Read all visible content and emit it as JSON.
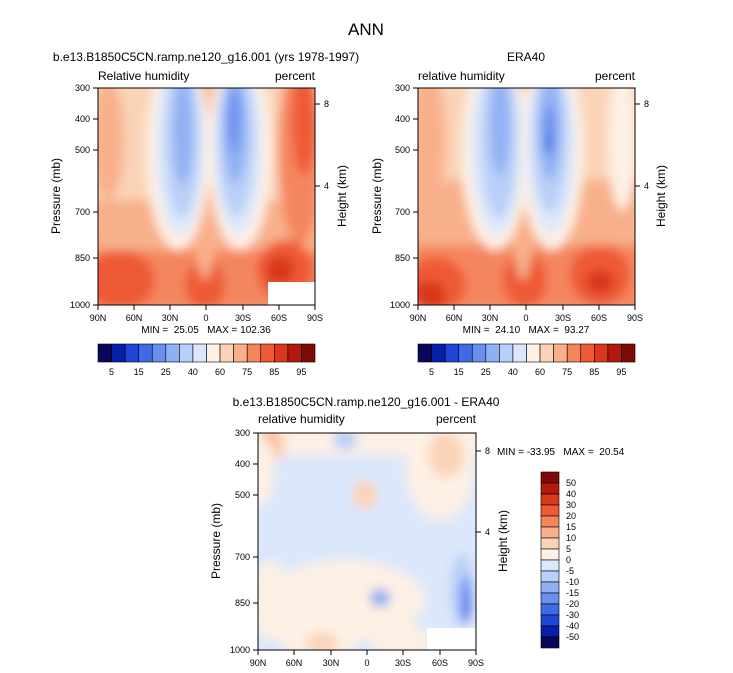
{
  "figure": {
    "title": "ANN"
  },
  "chart_data": [
    {
      "type": "heatmap",
      "title": "b.e13.B1850C5CN.ramp.ne120_g16.001 (yrs 1978-1997)",
      "left_label": "Relative humidity",
      "right_label": "percent",
      "xlabel": "",
      "ylabel": "Pressure (mb)",
      "y2label": "Height (km)",
      "x_ticks": [
        "90N",
        "60N",
        "30N",
        "0",
        "30S",
        "60S",
        "90S"
      ],
      "y_ticks": [
        "300",
        "400",
        "500",
        "700",
        "850",
        "1000"
      ],
      "y2_ticks": [
        "8",
        "4"
      ],
      "xlim": [
        90,
        -90
      ],
      "ylim": [
        1000,
        300
      ],
      "stats_text": "MIN =  25.05   MAX = 102.36",
      "min": 25.05,
      "max": 102.36
    },
    {
      "type": "heatmap",
      "title": "ERA40",
      "left_label": "relative humidity",
      "right_label": "percent",
      "xlabel": "",
      "ylabel": "Pressure (mb)",
      "y2label": "Height (km)",
      "x_ticks": [
        "90N",
        "60N",
        "30N",
        "0",
        "30S",
        "60S",
        "90S"
      ],
      "y_ticks": [
        "300",
        "400",
        "500",
        "700",
        "850",
        "1000"
      ],
      "y2_ticks": [
        "8",
        "4"
      ],
      "xlim": [
        90,
        -90
      ],
      "ylim": [
        1000,
        300
      ],
      "stats_text": "MIN =  24.10   MAX =  93.27",
      "min": 24.1,
      "max": 93.27
    },
    {
      "type": "heatmap",
      "title": "b.e13.B1850C5CN.ramp.ne120_g16.001 - ERA40",
      "left_label": "relative humidity",
      "right_label": "percent",
      "xlabel": "",
      "ylabel": "Pressure (mb)",
      "y2label": "Height (km)",
      "x_ticks": [
        "90N",
        "60N",
        "30N",
        "0",
        "30S",
        "60S",
        "90S"
      ],
      "y_ticks": [
        "300",
        "400",
        "500",
        "700",
        "850",
        "1000"
      ],
      "y2_ticks": [
        "8",
        "4"
      ],
      "xlim": [
        90,
        -90
      ],
      "ylim": [
        1000,
        300
      ],
      "stats_text": "MIN = -33.95   MAX =  20.54",
      "min": -33.95,
      "max": 20.54
    }
  ],
  "colorbars": {
    "abs": {
      "orientation": "horizontal",
      "labels": [
        "5",
        "15",
        "25",
        "40",
        "60",
        "75",
        "85",
        "95"
      ],
      "colors": [
        "#08075e",
        "#0a1fa8",
        "#1d46d6",
        "#3f6ae8",
        "#6a90ef",
        "#91b0f3",
        "#b9cff8",
        "#dbe7fb",
        "#fdf0e4",
        "#fbd3b7",
        "#f8b08b",
        "#f4865e",
        "#ee5a35",
        "#d9381b",
        "#b3190f",
        "#7f0a08"
      ]
    },
    "diff": {
      "orientation": "vertical",
      "labels": [
        "50",
        "40",
        "30",
        "20",
        "15",
        "10",
        "5",
        "0",
        "-5",
        "-10",
        "-15",
        "-20",
        "-30",
        "-40",
        "-50"
      ],
      "colors": [
        "#7f0a08",
        "#b3190f",
        "#d9381b",
        "#ee5a35",
        "#f4865e",
        "#f8b08b",
        "#fbd3b7",
        "#fdf0e4",
        "#dbe7fb",
        "#b9cff8",
        "#91b0f3",
        "#6a90ef",
        "#3f6ae8",
        "#1d46d6",
        "#0a1fa8",
        "#08075e"
      ]
    }
  }
}
